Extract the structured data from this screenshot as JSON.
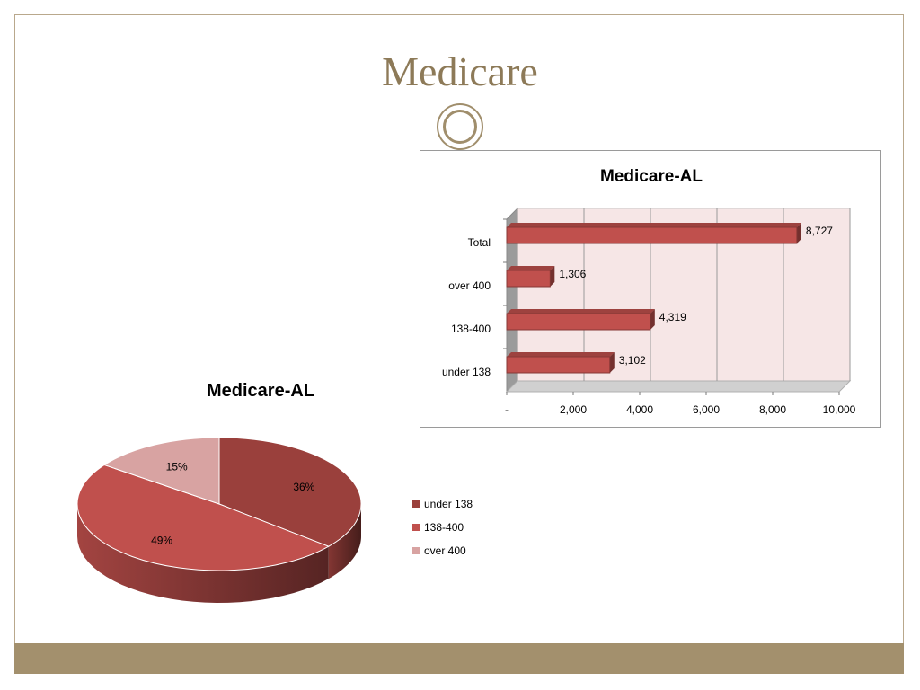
{
  "slide": {
    "title": "Medicare"
  },
  "colors": {
    "accent": "#a3906d",
    "title": "#8d7a58",
    "bar": "#c0504d",
    "pie_under_138": "#9a403c",
    "pie_138_400": "#c0504d",
    "pie_over_400": "#d8a3a2"
  },
  "chart_data": [
    {
      "type": "bar",
      "orientation": "horizontal",
      "title": "Medicare-AL",
      "categories": [
        "Total",
        "over 400",
        "138-400",
        "under 138"
      ],
      "values": [
        8727,
        1306,
        4319,
        3102
      ],
      "data_labels": [
        "8,727",
        "1,306",
        "4,319",
        "3,102"
      ],
      "xlim": [
        0,
        10000
      ],
      "x_ticks": [
        0,
        2000,
        4000,
        6000,
        8000,
        10000
      ],
      "x_tick_labels": [
        "-",
        "2,000",
        "4,000",
        "6,000",
        "8,000",
        "10,000"
      ],
      "grid": true,
      "style": "3d"
    },
    {
      "type": "pie",
      "title": "Medicare-AL",
      "labels": [
        "under 138",
        "138-400",
        "over 400"
      ],
      "values": [
        36,
        49,
        15
      ],
      "data_labels": [
        "36%",
        "49%",
        "15%"
      ],
      "legend": "right",
      "style": "3d"
    }
  ]
}
